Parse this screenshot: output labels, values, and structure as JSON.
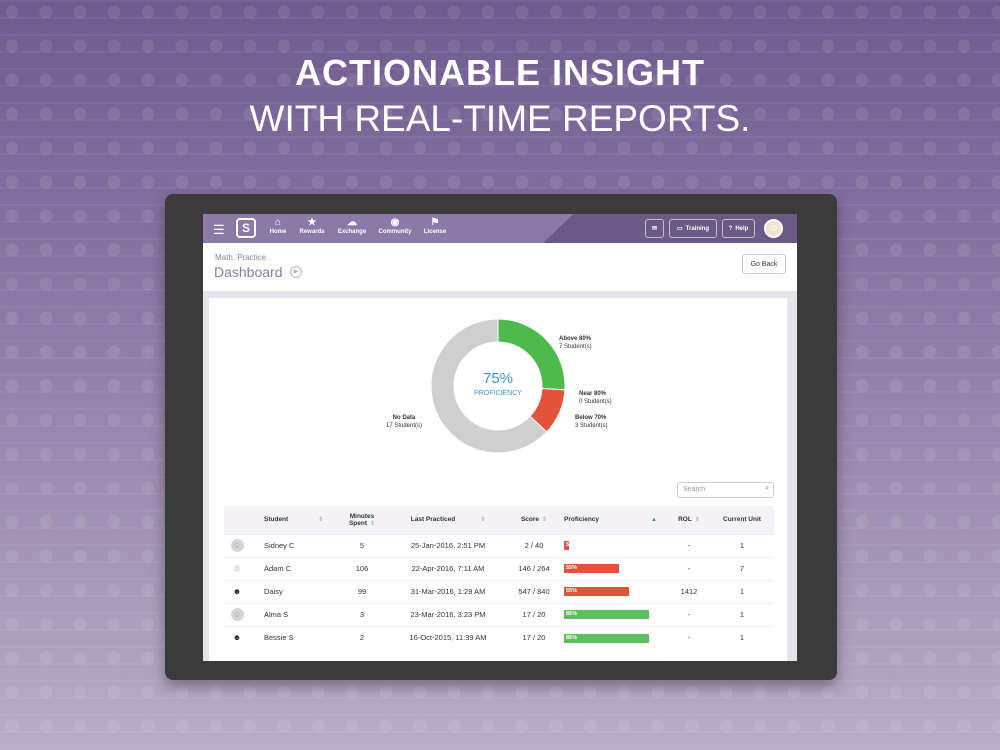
{
  "headline": {
    "line1": "ACTIONABLE INSIGHT",
    "line2": "WITH REAL-TIME REPORTS."
  },
  "nav": {
    "logo_letter": "S",
    "items": [
      {
        "label": "Home",
        "icon": "home-icon",
        "glyph": "⌂"
      },
      {
        "label": "Rewards",
        "icon": "star-icon",
        "glyph": "★"
      },
      {
        "label": "Exchange",
        "icon": "cloud-icon",
        "glyph": "☁"
      },
      {
        "label": "Community",
        "icon": "community-icon",
        "glyph": "◉"
      },
      {
        "label": "License",
        "icon": "license-icon",
        "glyph": "⚑"
      }
    ],
    "training_label": "Training",
    "help_label": "Help"
  },
  "header": {
    "breadcrumb": "Math. Practice.",
    "title": "Dashboard",
    "go_back": "Go Back"
  },
  "proficiency": {
    "percent": "75%",
    "label": "PROFICIENCY",
    "colors": {
      "above": "#4cba4c",
      "near": "#e9a03b",
      "below": "#e2533c",
      "nodata": "#cfcfcf"
    },
    "segments": [
      {
        "key": "above",
        "title": "Above 80%",
        "count": "7 Student(s)",
        "value": 7
      },
      {
        "key": "near",
        "title": "Near 80%",
        "count": "0 Student(s)",
        "value": 0
      },
      {
        "key": "below",
        "title": "Below 70%",
        "count": "3 Student(s)",
        "value": 3
      },
      {
        "key": "nodata",
        "title": "No Data",
        "count": "17 Student(s)",
        "value": 17
      }
    ]
  },
  "search": {
    "placeholder": "Search"
  },
  "table": {
    "headers": {
      "student": "Student",
      "minutes_1": "Minutes",
      "minutes_2": "Spent",
      "last": "Last Practiced",
      "score": "Score",
      "proficiency": "Proficiency",
      "rol": "ROL",
      "unit": "Current Unit"
    },
    "rows": [
      {
        "avatar": "neutral",
        "name": "Sidney C",
        "minutes": "5",
        "last": "25-Jan-2016, 2:51 PM",
        "score": "2 / 40",
        "prof_label": "5%",
        "prof": 5,
        "rol": "-",
        "unit": "1"
      },
      {
        "avatar": "character",
        "name": "Adam C",
        "minutes": "106",
        "last": "22-Apr-2016, 7:11 AM",
        "score": "146 / 264",
        "prof_label": "55%",
        "prof": 55,
        "rol": "-",
        "unit": "7"
      },
      {
        "avatar": "girl",
        "name": "Daisy",
        "minutes": "99",
        "last": "31-Mar-2016, 1:29 AM",
        "score": "547 / 840",
        "prof_label": "65%",
        "prof": 65,
        "rol": "1412",
        "unit": "1"
      },
      {
        "avatar": "neutral",
        "name": "Alma S",
        "minutes": "3",
        "last": "23-Mar-2016, 3:23 PM",
        "score": "17 / 20",
        "prof_label": "85%",
        "prof": 85,
        "rol": "-",
        "unit": "1"
      },
      {
        "avatar": "girl",
        "name": "Bessie S",
        "minutes": "2",
        "last": "16-Oct-2015, 11:39 AM",
        "score": "17 / 20",
        "prof_label": "85%",
        "prof": 85,
        "rol": "-",
        "unit": "1"
      }
    ]
  }
}
